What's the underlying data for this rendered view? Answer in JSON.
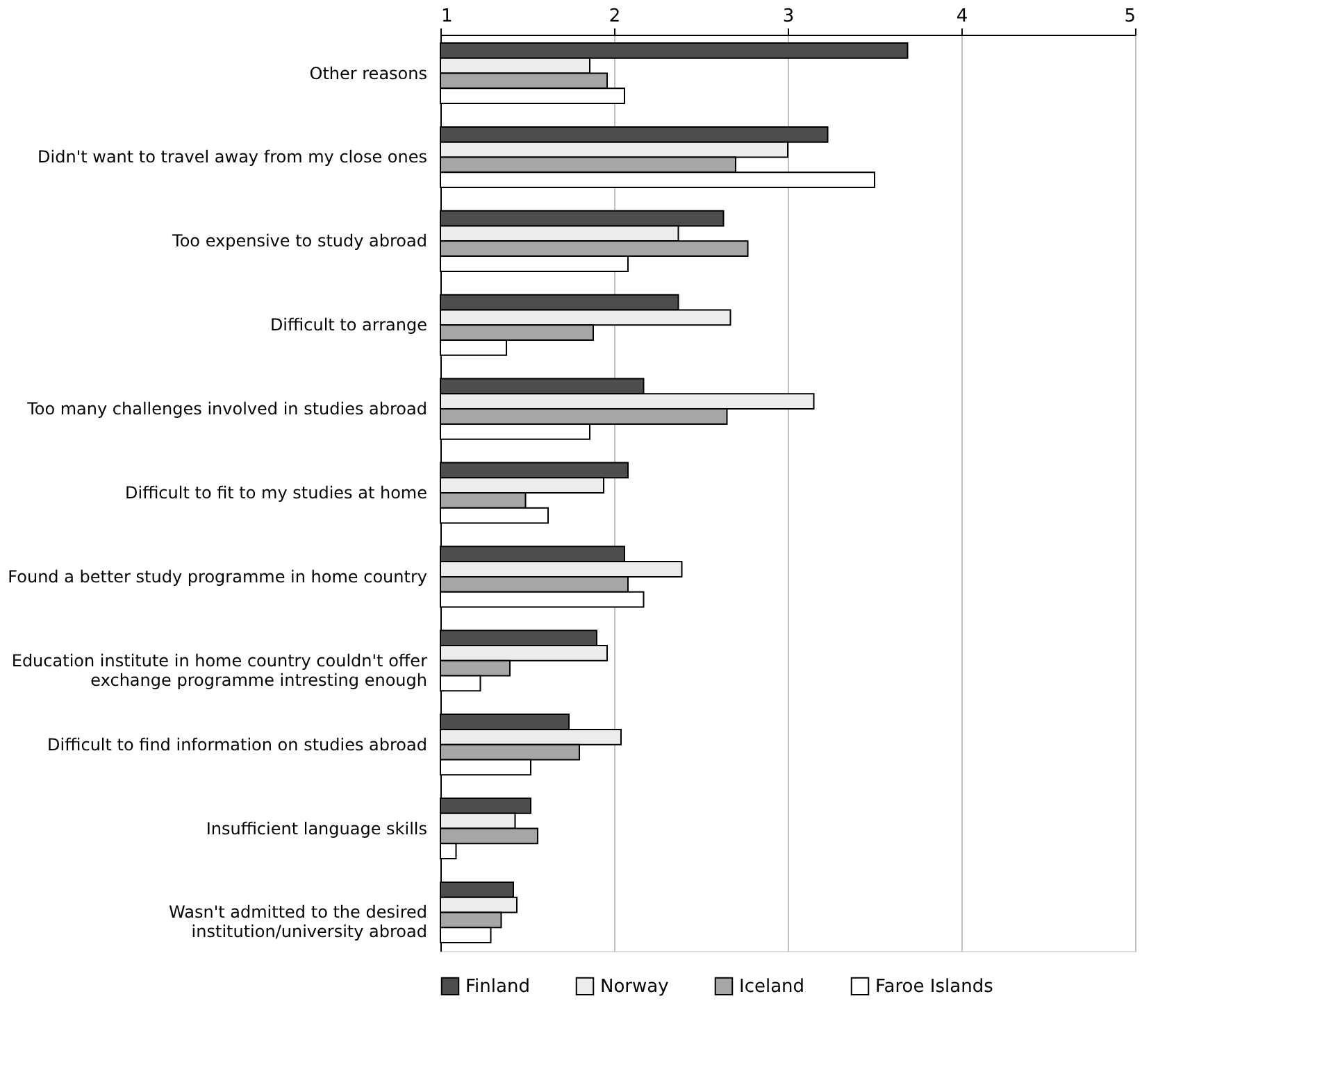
{
  "chart_data": {
    "type": "bar",
    "orientation": "horizontal",
    "categories": [
      "Other reasons",
      "Didn't want to travel away from my close ones",
      "Too expensive to study abroad",
      "Difficult to arrange",
      "Too many challenges involved in studies abroad",
      "Difficult to fit to my studies at home",
      "Found a better study programme in home country",
      "Education institute in home country couldn't offer\nexchange programme intresting enough",
      "Difficult to find information on studies abroad",
      "Insufficient language skills",
      "Wasn't admitted to the desired\ninstitution/university abroad"
    ],
    "series": [
      {
        "name": "Finland",
        "color": "#4d4d4d",
        "values": [
          3.69,
          3.23,
          2.63,
          2.37,
          2.17,
          2.08,
          2.06,
          1.9,
          1.74,
          1.52,
          1.42
        ]
      },
      {
        "name": "Norway",
        "color": "#ececec",
        "values": [
          1.86,
          3.0,
          2.37,
          2.67,
          3.15,
          1.94,
          2.39,
          1.96,
          2.04,
          1.43,
          1.44
        ]
      },
      {
        "name": "Iceland",
        "color": "#a6a6a6",
        "values": [
          1.96,
          2.7,
          2.77,
          1.88,
          2.65,
          1.49,
          2.08,
          1.4,
          1.8,
          1.56,
          1.35
        ]
      },
      {
        "name": "Faroe Islands",
        "color": "#ffffff",
        "values": [
          2.06,
          3.5,
          2.08,
          1.38,
          1.86,
          1.62,
          2.17,
          1.23,
          1.52,
          1.09,
          1.29
        ]
      }
    ],
    "xlim": [
      1,
      5
    ],
    "xticks": [
      1,
      2,
      3,
      4,
      5
    ],
    "grid": "x",
    "legend": "bottom"
  }
}
